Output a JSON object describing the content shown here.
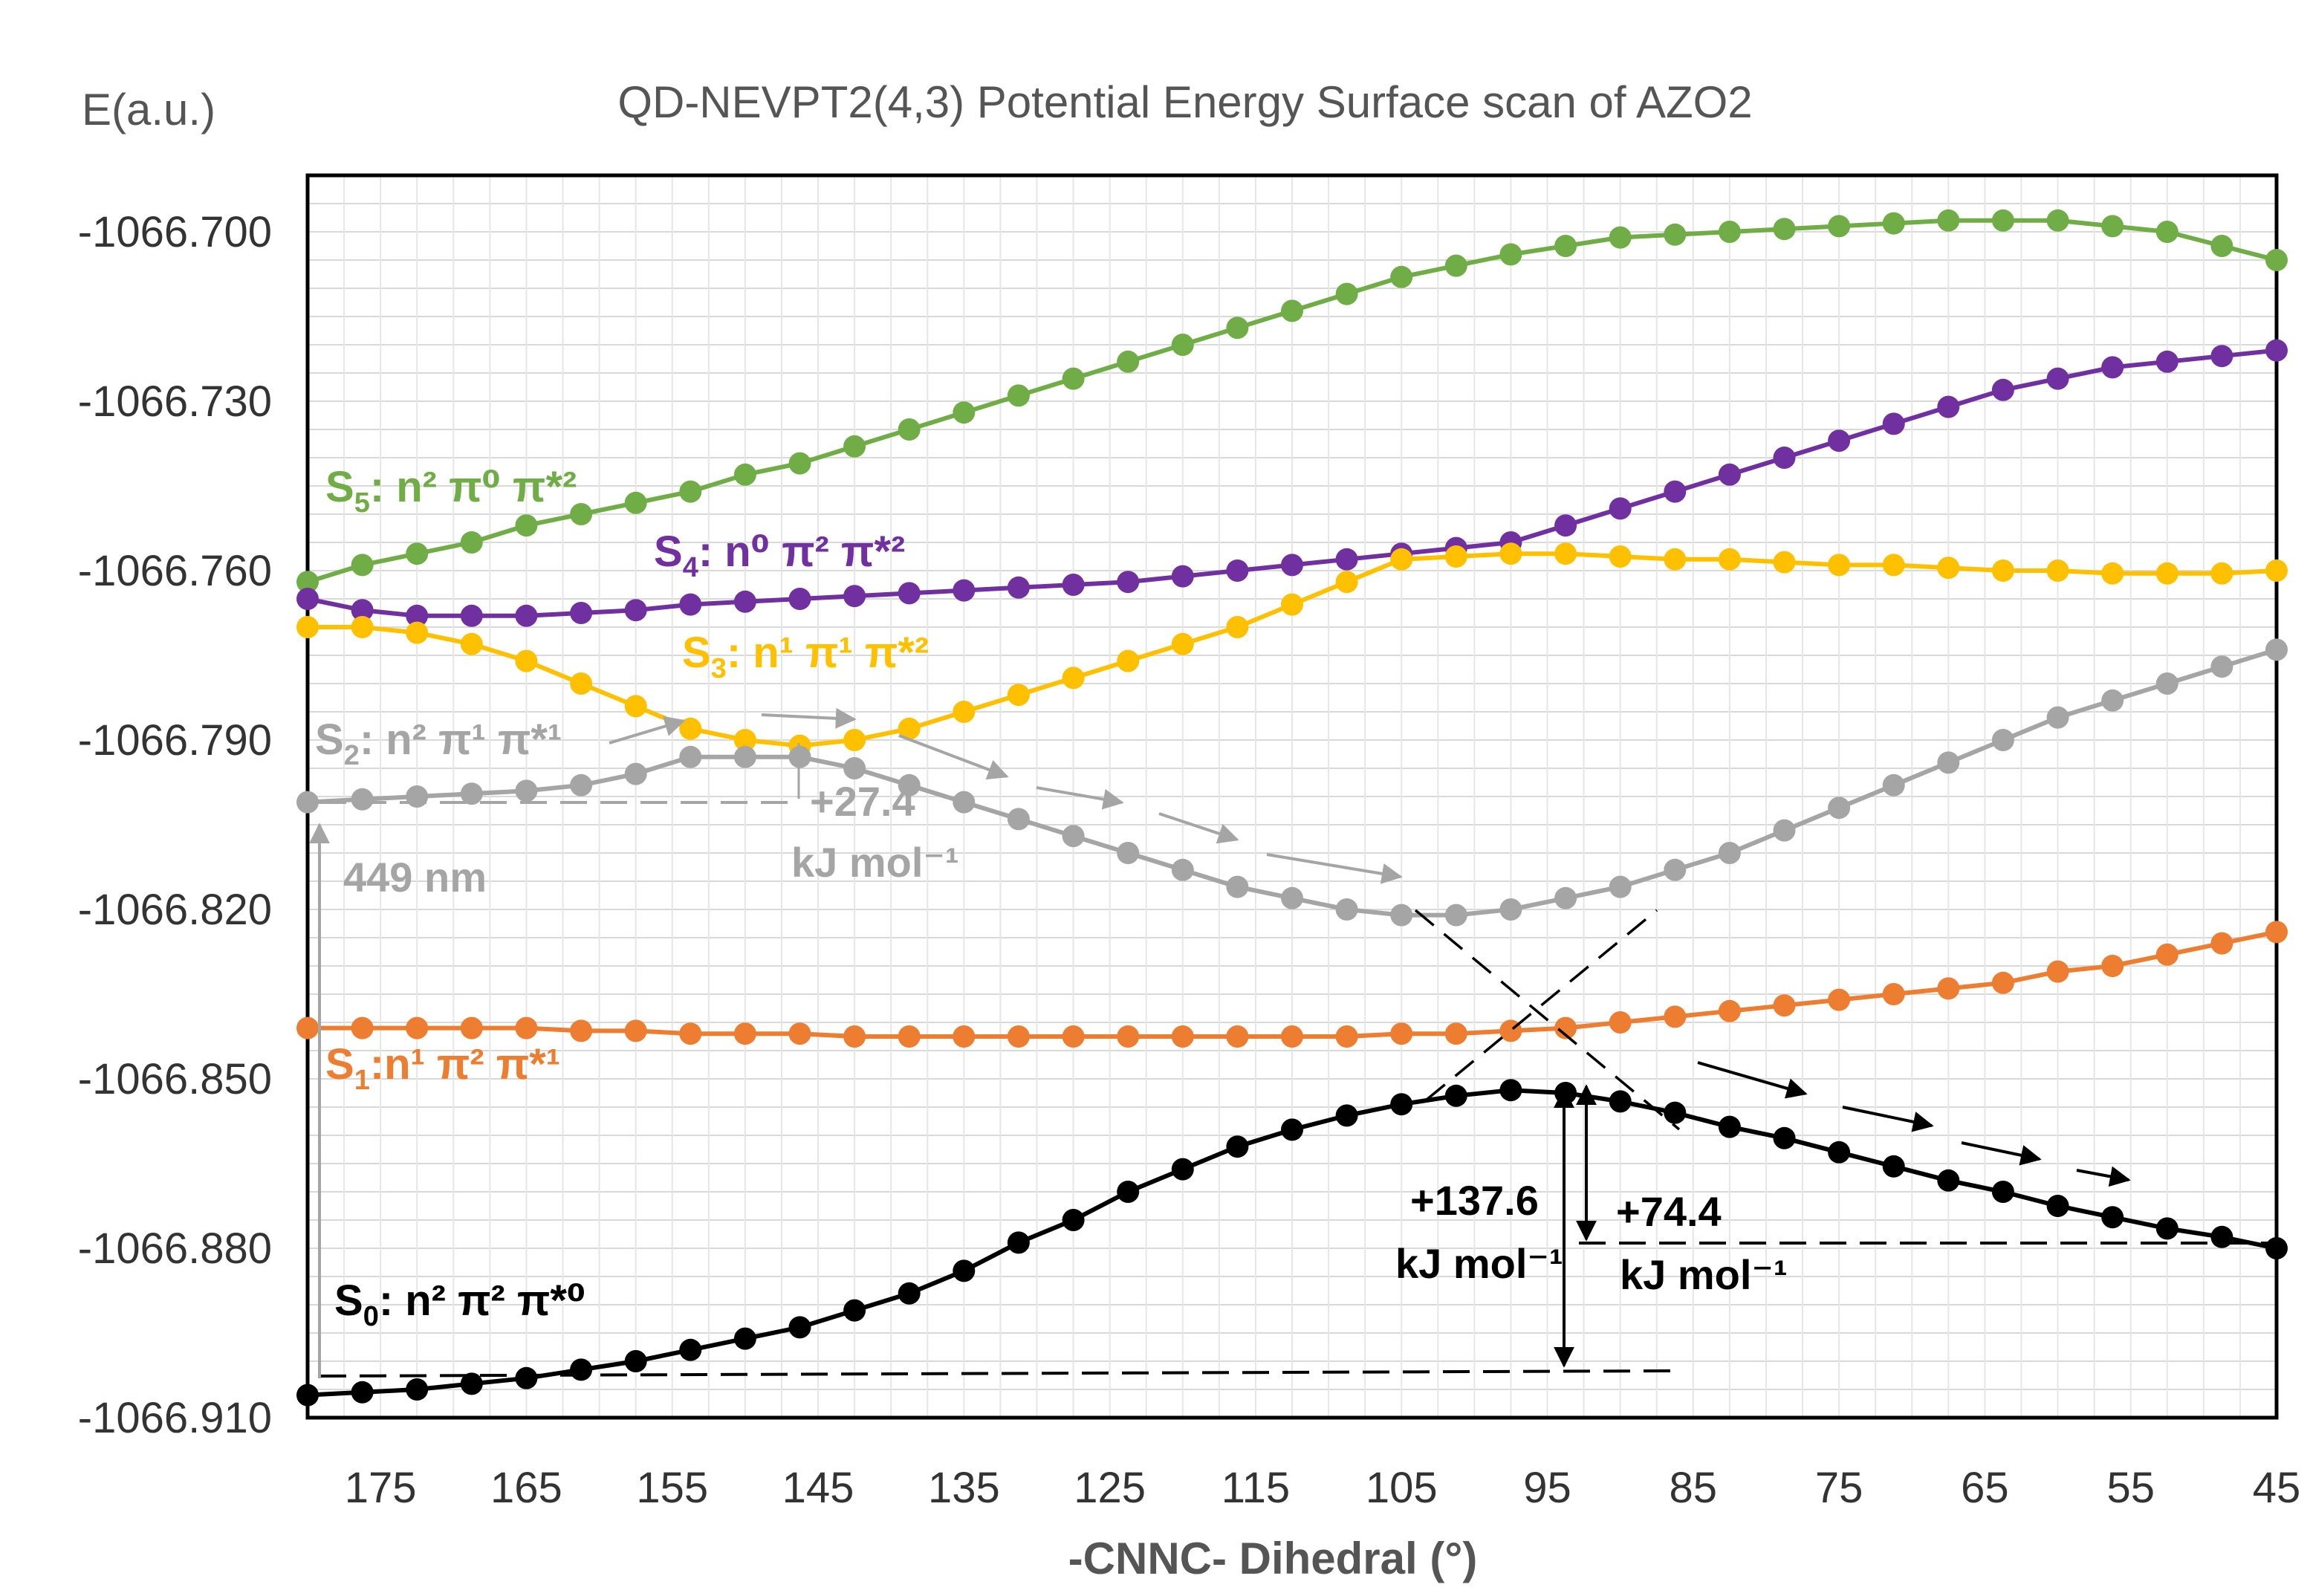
{
  "chart_data": {
    "type": "line",
    "title": "QD-NEVPT2(4,3) Potential Energy Surface scan of AZO2",
    "ylabel": "E(a.u.)",
    "xlabel": "-CNNC- Dihedral (°)",
    "xlim": [
      180,
      45
    ],
    "ylim": [
      -1066.91,
      -1066.69
    ],
    "xticks": [
      "175",
      "165",
      "155",
      "145",
      "135",
      "125",
      "115",
      "105",
      "95",
      "85",
      "75",
      "65",
      "55",
      "45"
    ],
    "yticks": [
      "-1066.700",
      "-1066.730",
      "-1066.760",
      "-1066.790",
      "-1066.820",
      "-1066.850",
      "-1066.880",
      "-1066.910"
    ],
    "grid": true,
    "x": [
      180,
      176.25,
      172.5,
      168.75,
      165,
      161.25,
      157.5,
      153.75,
      150,
      146.25,
      142.5,
      138.75,
      135,
      131.25,
      127.5,
      123.75,
      120,
      116.25,
      112.5,
      108.75,
      105,
      101.25,
      97.5,
      93.75,
      90,
      86.25,
      82.5,
      78.75,
      75,
      71.25,
      67.5,
      63.75,
      60,
      56.25,
      52.5,
      48.75,
      45
    ],
    "series": [
      {
        "name": "S5",
        "color": "#70AD47",
        "values": [
          -1066.762,
          -1066.759,
          -1066.757,
          -1066.755,
          -1066.752,
          -1066.75,
          -1066.748,
          -1066.746,
          -1066.743,
          -1066.741,
          -1066.738,
          -1066.735,
          -1066.732,
          -1066.729,
          -1066.726,
          -1066.723,
          -1066.72,
          -1066.717,
          -1066.714,
          -1066.711,
          -1066.708,
          -1066.706,
          -1066.704,
          -1066.7025,
          -1066.701,
          -1066.7005,
          -1066.7,
          -1066.6995,
          -1066.699,
          -1066.6985,
          -1066.698,
          -1066.698,
          -1066.698,
          -1066.699,
          -1066.7,
          -1066.7025,
          -1066.705
        ]
      },
      {
        "name": "S4",
        "color": "#7030A0",
        "values": [
          -1066.765,
          -1066.767,
          -1066.768,
          -1066.768,
          -1066.768,
          -1066.7675,
          -1066.767,
          -1066.766,
          -1066.7655,
          -1066.765,
          -1066.7645,
          -1066.764,
          -1066.7635,
          -1066.763,
          -1066.7625,
          -1066.762,
          -1066.761,
          -1066.76,
          -1066.759,
          -1066.758,
          -1066.757,
          -1066.756,
          -1066.755,
          -1066.752,
          -1066.749,
          -1066.746,
          -1066.743,
          -1066.74,
          -1066.737,
          -1066.734,
          -1066.731,
          -1066.728,
          -1066.726,
          -1066.724,
          -1066.723,
          -1066.722,
          -1066.721
        ]
      },
      {
        "name": "S3",
        "color": "#FFC000",
        "values": [
          -1066.77,
          -1066.77,
          -1066.771,
          -1066.773,
          -1066.776,
          -1066.78,
          -1066.784,
          -1066.788,
          -1066.79,
          -1066.791,
          -1066.79,
          -1066.788,
          -1066.785,
          -1066.782,
          -1066.779,
          -1066.776,
          -1066.773,
          -1066.77,
          -1066.766,
          -1066.762,
          -1066.758,
          -1066.7575,
          -1066.757,
          -1066.757,
          -1066.7575,
          -1066.758,
          -1066.758,
          -1066.7585,
          -1066.759,
          -1066.759,
          -1066.7595,
          -1066.76,
          -1066.76,
          -1066.7605,
          -1066.7605,
          -1066.7605,
          -1066.76
        ]
      },
      {
        "name": "S2",
        "color": "#A5A5A5",
        "values": [
          -1066.801,
          -1066.8005,
          -1066.8,
          -1066.7995,
          -1066.799,
          -1066.798,
          -1066.796,
          -1066.793,
          -1066.793,
          -1066.793,
          -1066.795,
          -1066.798,
          -1066.801,
          -1066.804,
          -1066.807,
          -1066.81,
          -1066.813,
          -1066.816,
          -1066.818,
          -1066.82,
          -1066.821,
          -1066.821,
          -1066.82,
          -1066.818,
          -1066.816,
          -1066.813,
          -1066.81,
          -1066.806,
          -1066.802,
          -1066.798,
          -1066.794,
          -1066.79,
          -1066.786,
          -1066.783,
          -1066.78,
          -1066.777,
          -1066.774
        ]
      },
      {
        "name": "S1",
        "color": "#ED7D31",
        "values": [
          -1066.841,
          -1066.841,
          -1066.841,
          -1066.841,
          -1066.841,
          -1066.8415,
          -1066.8415,
          -1066.842,
          -1066.842,
          -1066.842,
          -1066.8425,
          -1066.8425,
          -1066.8425,
          -1066.8425,
          -1066.8425,
          -1066.8425,
          -1066.8425,
          -1066.8425,
          -1066.8425,
          -1066.8425,
          -1066.842,
          -1066.842,
          -1066.8415,
          -1066.841,
          -1066.84,
          -1066.839,
          -1066.838,
          -1066.837,
          -1066.836,
          -1066.835,
          -1066.834,
          -1066.833,
          -1066.831,
          -1066.83,
          -1066.828,
          -1066.826,
          -1066.824
        ]
      },
      {
        "name": "S0",
        "color": "#000000",
        "values": [
          -1066.906,
          -1066.9055,
          -1066.905,
          -1066.904,
          -1066.903,
          -1066.9015,
          -1066.9,
          -1066.898,
          -1066.896,
          -1066.894,
          -1066.891,
          -1066.888,
          -1066.884,
          -1066.879,
          -1066.875,
          -1066.87,
          -1066.866,
          -1066.862,
          -1066.859,
          -1066.8565,
          -1066.8545,
          -1066.853,
          -1066.852,
          -1066.8525,
          -1066.854,
          -1066.856,
          -1066.8585,
          -1066.8605,
          -1066.863,
          -1066.8655,
          -1066.868,
          -1066.87,
          -1066.8725,
          -1066.8745,
          -1066.8765,
          -1066.878,
          -1066.88
        ]
      }
    ],
    "state_labels": [
      {
        "sub": "5",
        "rest": ": n² π⁰ π*²",
        "color": "#70AD47"
      },
      {
        "sub": "4",
        "rest": ": n⁰ π² π*²",
        "color": "#7030A0"
      },
      {
        "sub": "3",
        "rest": ": n¹ π¹ π*²",
        "color": "#FFC000"
      },
      {
        "sub": "2",
        "rest": ": n² π¹ π*¹",
        "color": "#A5A5A5"
      },
      {
        "sub": "1",
        "rest": ":n¹ π² π*¹",
        "color": "#ED7D31"
      },
      {
        "sub": "0",
        "rest": ": n² π² π*⁰",
        "color": "#000000"
      }
    ],
    "annotations": {
      "excitation": "449 nm",
      "barrier_s2_value": "+27.4",
      "barrier_s2_unit": "kJ mol⁻¹",
      "barrier_s0_value": "+137.6",
      "barrier_s0_unit": "kJ mol⁻¹",
      "relax_value": "+74.4",
      "relax_unit": "kJ mol⁻¹"
    }
  }
}
